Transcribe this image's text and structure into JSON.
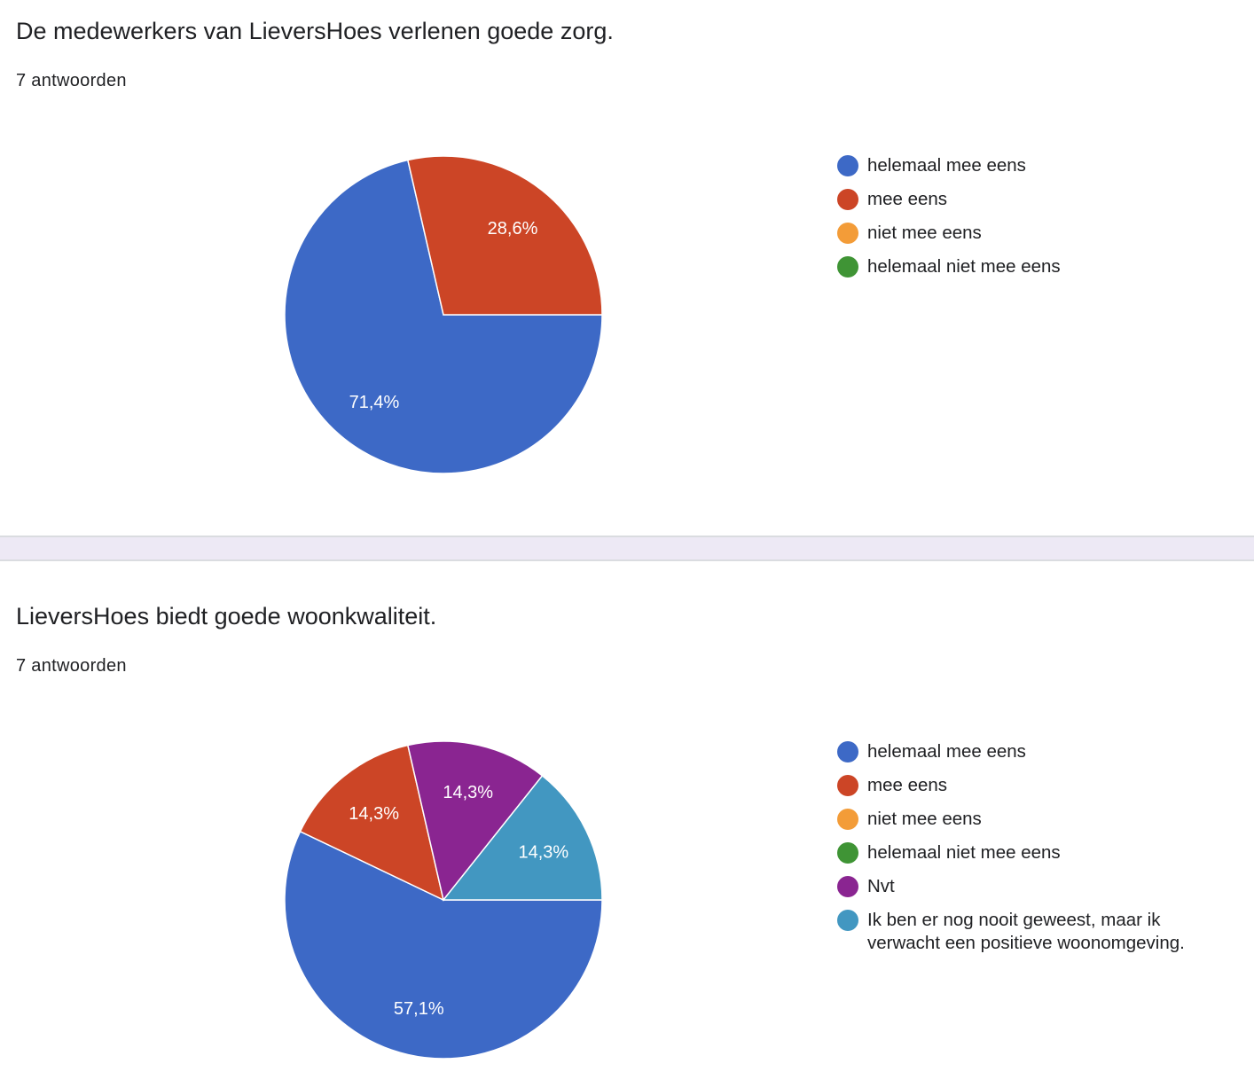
{
  "chart_data": [
    {
      "type": "pie",
      "title": "De medewerkers van LieversHoes verlenen goede zorg.",
      "subtitle": "7 antwoorden",
      "legend_position": "right",
      "categories": [
        "helemaal mee eens",
        "mee eens",
        "niet mee eens",
        "helemaal niet mee eens"
      ],
      "colors": [
        "#3d69c6",
        "#cc4526",
        "#f39c38",
        "#3f9435"
      ],
      "values": [
        71.4,
        28.6,
        0,
        0
      ],
      "data_labels": [
        "71,4%",
        "28,6%",
        "",
        ""
      ]
    },
    {
      "type": "pie",
      "title": "LieversHoes biedt goede woonkwaliteit.",
      "subtitle": "7 antwoorden",
      "legend_position": "right",
      "categories": [
        "helemaal mee eens",
        "mee eens",
        "niet mee eens",
        "helemaal niet mee eens",
        "Nvt",
        "Ik ben er nog nooit geweest, maar ik verwacht een positieve woonomgeving."
      ],
      "colors": [
        "#3d69c6",
        "#cc4526",
        "#f39c38",
        "#3f9435",
        "#8a2591",
        "#4297c1"
      ],
      "values": [
        57.1,
        14.3,
        0,
        0,
        14.3,
        14.3
      ],
      "data_labels": [
        "57,1%",
        "14,3%",
        "",
        "",
        "14,3%",
        "14,3%"
      ]
    }
  ]
}
